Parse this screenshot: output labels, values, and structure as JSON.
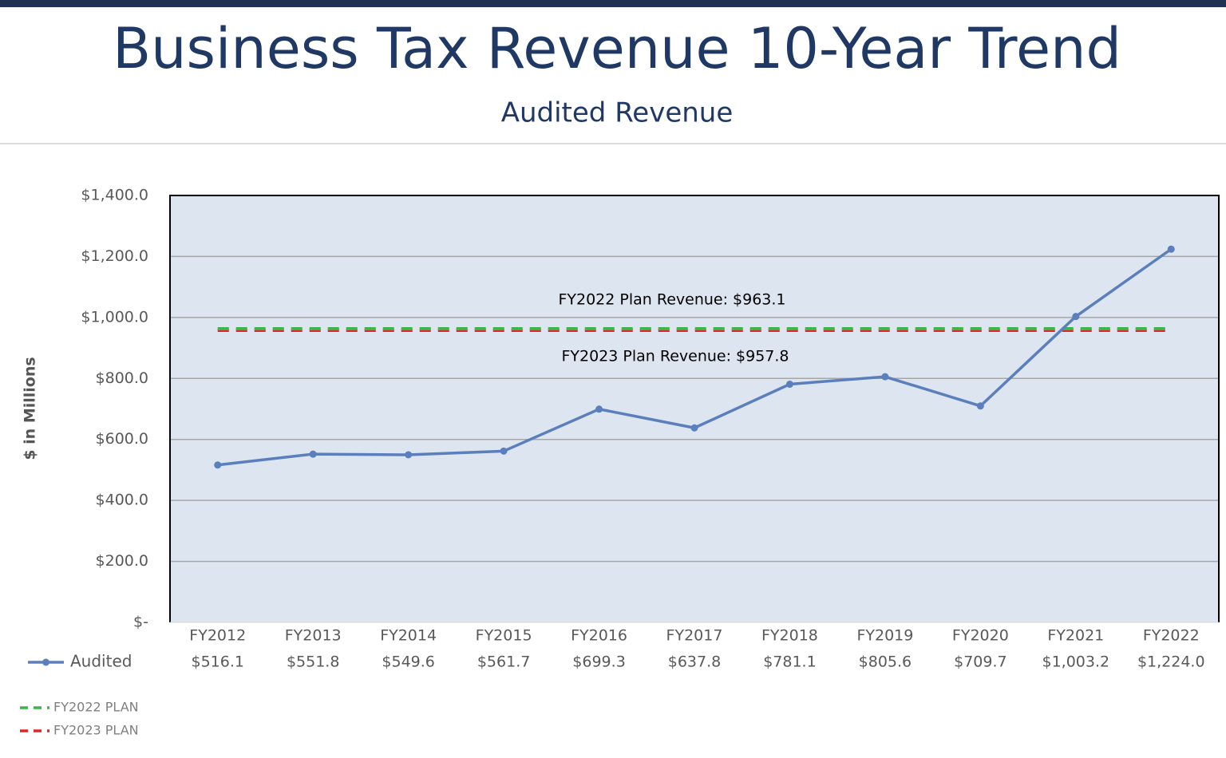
{
  "chart_data": {
    "type": "line",
    "title": "Business Tax Revenue 10-Year Trend",
    "subtitle": "Audited Revenue",
    "y_label": "$ in Millions",
    "categories": [
      "FY2012",
      "FY2013",
      "FY2014",
      "FY2015",
      "FY2016",
      "FY2017",
      "FY2018",
      "FY2019",
      "FY2020",
      "FY2021",
      "FY2022"
    ],
    "series": [
      {
        "name": "Audited",
        "color": "#5b7fbd",
        "values": [
          516.1,
          551.8,
          549.6,
          561.7,
          699.3,
          637.8,
          781.1,
          805.6,
          709.7,
          1003.2,
          1224.0
        ],
        "value_labels": [
          "$516.1",
          "$551.8",
          "$549.6",
          "$561.7",
          "$699.3",
          "$637.8",
          "$781.1",
          "$805.6",
          "$709.7",
          "$1,003.2",
          "$1,224.0"
        ]
      },
      {
        "name": "FY2022 PLAN",
        "color": "#3cb54a",
        "dashed": true,
        "values": [
          963.1,
          963.1,
          963.1,
          963.1,
          963.1,
          963.1,
          963.1,
          963.1,
          963.1,
          963.1,
          963.1
        ]
      },
      {
        "name": "FY2023 PLAN",
        "color": "#e0262a",
        "dashed": true,
        "values": [
          957.8,
          957.8,
          957.8,
          957.8,
          957.8,
          957.8,
          957.8,
          957.8,
          957.8,
          957.8,
          957.8
        ]
      }
    ],
    "annotations": [
      "FY2022 Plan Revenue: $963.1",
      "FY2023 Plan Revenue: $957.8"
    ],
    "ylim": [
      0,
      1400
    ],
    "yticks": [
      {
        "value": 0,
        "label": "$-"
      },
      {
        "value": 200,
        "label": "$200.0"
      },
      {
        "value": 400,
        "label": "$400.0"
      },
      {
        "value": 600,
        "label": "$600.0"
      },
      {
        "value": 800,
        "label": "$800.0"
      },
      {
        "value": 1000,
        "label": "$1,000.0"
      },
      {
        "value": 1200,
        "label": "$1,200.0"
      },
      {
        "value": 1400,
        "label": "$1,400.0"
      }
    ],
    "grid": true
  }
}
